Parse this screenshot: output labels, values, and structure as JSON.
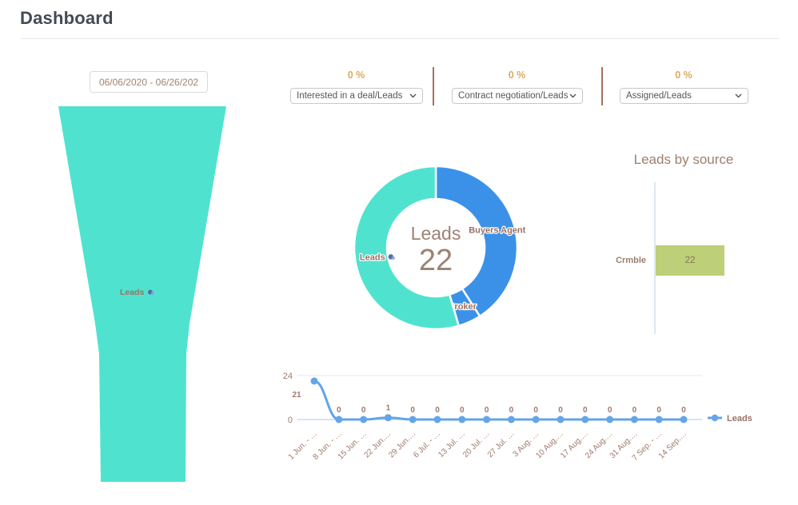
{
  "header": {
    "title": "Dashboard"
  },
  "filters": {
    "date_range": "06/06/2020 - 06/26/202",
    "kpis": [
      {
        "value": "0 %",
        "selected_metric": "Interested in a deal/Leads"
      },
      {
        "value": "0 %",
        "selected_metric": "Contract negotiation/Leads"
      },
      {
        "value": "0 %",
        "selected_metric": "Assigned/Leads"
      }
    ]
  },
  "colors": {
    "teal": "#4FE3CF",
    "donut_blue": "#3B91E8",
    "line_blue": "#64A5E8",
    "olive": "#BDCF78",
    "percent_gold": "#DFA85E",
    "label_brown": "#9A7265",
    "divider_brown": "#A5715F"
  },
  "chart_data": [
    {
      "id": "funnel",
      "type": "funnel",
      "color": "#4FE3CF",
      "stages": [
        {
          "label": "Leads",
          "value": 22
        }
      ]
    },
    {
      "id": "donut",
      "type": "pie",
      "center_label": "Leads",
      "center_value": "22",
      "total": 22,
      "legend_position": "inside",
      "segments": [
        {
          "label": "Buyers Agent",
          "value": 9,
          "color": "#3B91E8",
          "icon": false
        },
        {
          "label": "Broker",
          "value": 1,
          "color": "#3B91E8",
          "icon": false
        },
        {
          "label": "Leads",
          "value": 12,
          "color": "#4FE3CF",
          "icon": true
        }
      ]
    },
    {
      "id": "leads-by-source",
      "type": "bar",
      "title": "Leads by source",
      "orientation": "horizontal",
      "categories": [
        "Crmble"
      ],
      "values": [
        22
      ],
      "color": "#BDCF78"
    },
    {
      "id": "leads-over-time",
      "type": "line",
      "legend": "Leads",
      "grid": true,
      "yticks": [
        0,
        24
      ],
      "ylim": [
        0,
        24
      ],
      "x": [
        "1 Jun. - …",
        "8 Jun. - …",
        "15 Jun. …",
        "22 Jun.…",
        "29 Jun.…",
        "6 Jul. - …",
        "13 Jul. …",
        "20 Jul. …",
        "27 Jul. …",
        "3 Aug. …",
        "10 Aug.…",
        "17 Aug.…",
        "24 Aug.…",
        "31 Aug.…",
        "7 Sep. - …",
        "14 Sep.…"
      ],
      "values": [
        21,
        0,
        0,
        1,
        0,
        0,
        0,
        0,
        0,
        0,
        0,
        0,
        0,
        0,
        0,
        0
      ]
    }
  ]
}
